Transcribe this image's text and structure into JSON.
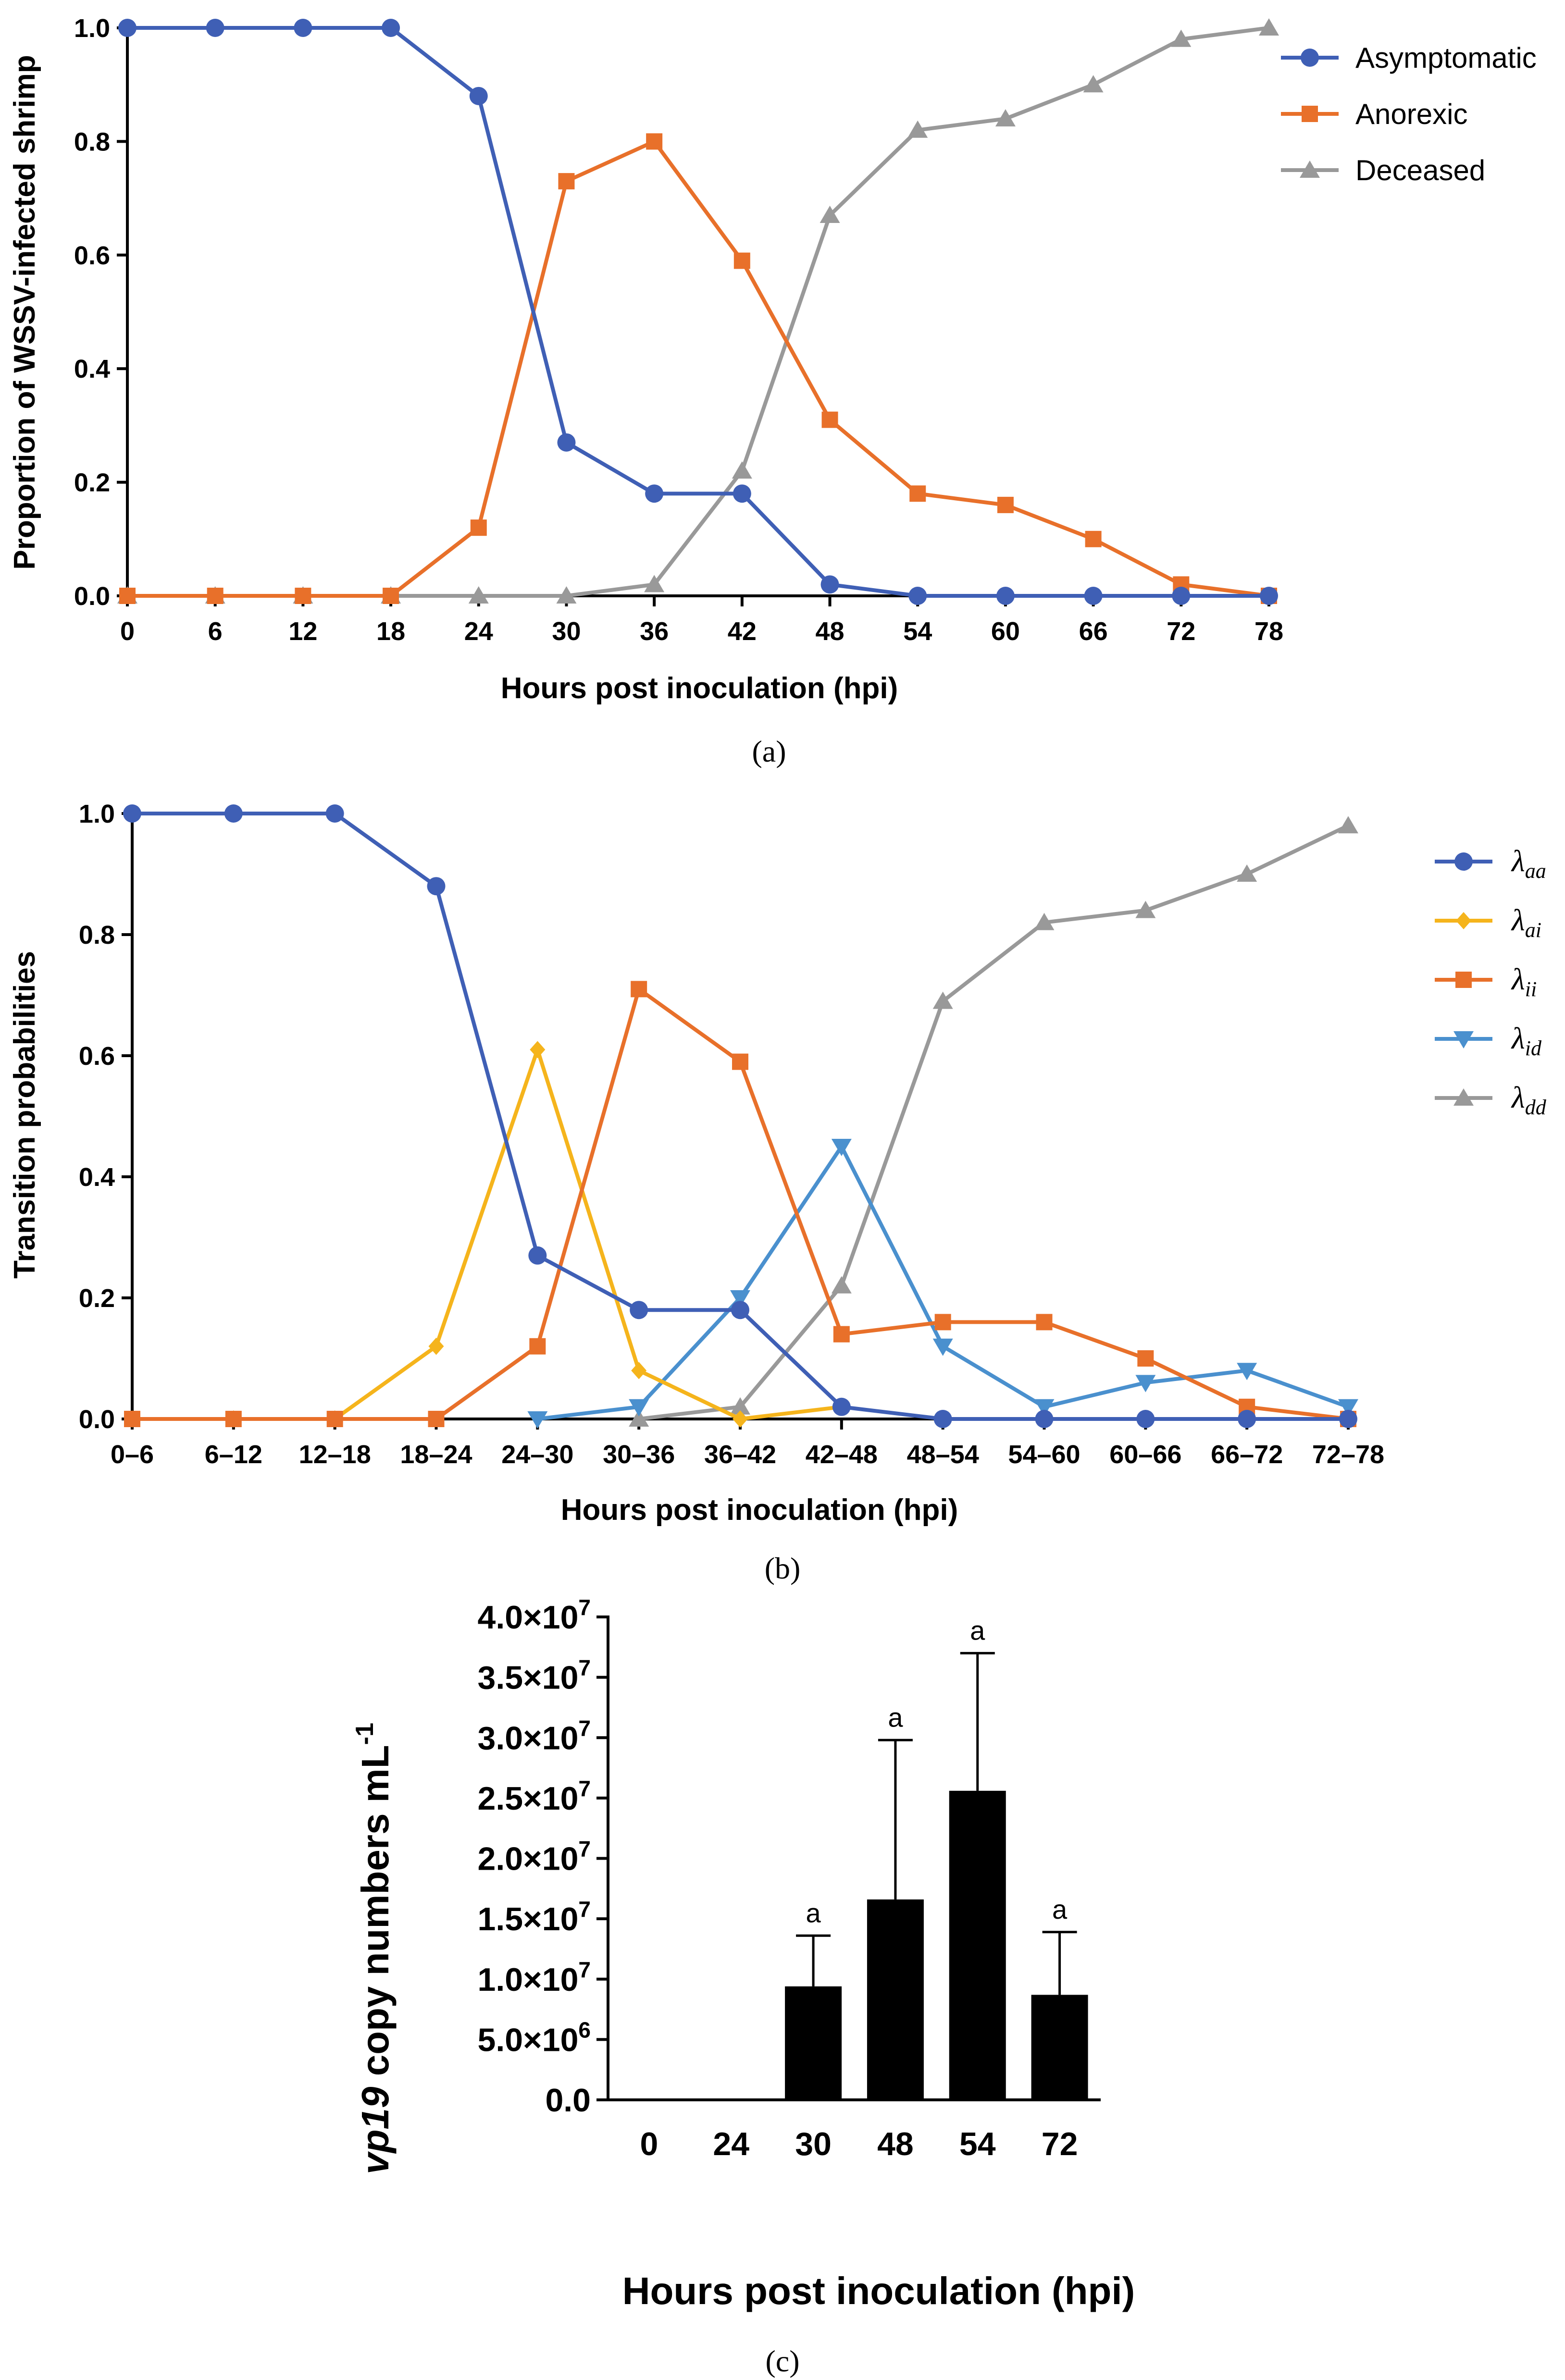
{
  "chart_data": [
    {
      "panel": "(a)",
      "type": "line",
      "xlabel": "Hours post inoculation (hpi)",
      "ylabel": "Proportion of WSSV-infected shrimp",
      "x": [
        0,
        6,
        12,
        18,
        24,
        30,
        36,
        42,
        48,
        54,
        60,
        66,
        72,
        78
      ],
      "xtick_labels": [
        "0",
        "6",
        "12",
        "18",
        "24",
        "30",
        "36",
        "42",
        "48",
        "54",
        "60",
        "66",
        "72",
        "78"
      ],
      "ylim": [
        0,
        1
      ],
      "yticks": [
        0,
        0.2,
        0.4,
        0.6,
        0.8,
        1
      ],
      "ytick_labels": [
        "0.0",
        "0.2",
        "0.4",
        "0.6",
        "0.8",
        "1.0"
      ],
      "legend_position": "top-right",
      "series": [
        {
          "name": "Asymptomatic",
          "color": "#3F5FB5",
          "marker": "circle",
          "values": [
            1,
            1,
            1,
            1,
            0.88,
            0.27,
            0.18,
            0.18,
            0.02,
            0,
            0,
            0,
            0,
            0
          ]
        },
        {
          "name": "Anorexic",
          "color": "#E8702A",
          "marker": "square",
          "values": [
            0,
            0,
            0,
            0,
            0.12,
            0.73,
            0.8,
            0.59,
            0.31,
            0.18,
            0.16,
            0.1,
            0.02,
            0
          ]
        },
        {
          "name": "Deceased",
          "color": "#999999",
          "marker": "triangle",
          "values": [
            0,
            0,
            0,
            0,
            0,
            0,
            0.02,
            0.22,
            0.67,
            0.82,
            0.84,
            0.9,
            0.98,
            1
          ]
        }
      ]
    },
    {
      "panel": "(b)",
      "type": "line",
      "xlabel": "Hours post inoculation (hpi)",
      "ylabel": "Transition probabilities",
      "categories": [
        "0–6",
        "6–12",
        "12–18",
        "18–24",
        "24–30",
        "30–36",
        "36–42",
        "42–48",
        "48–54",
        "54–60",
        "60–66",
        "66–72",
        "72–78"
      ],
      "ylim": [
        0,
        1
      ],
      "yticks": [
        0,
        0.2,
        0.4,
        0.6,
        0.8,
        1
      ],
      "ytick_labels": [
        "0.0",
        "0.2",
        "0.4",
        "0.6",
        "0.8",
        "1.0"
      ],
      "legend_position": "right",
      "series": [
        {
          "name": "λ",
          "sub": "aa",
          "color": "#3F5FB5",
          "marker": "circle",
          "values": [
            1,
            1,
            1,
            0.88,
            0.27,
            0.18,
            0.18,
            0.02,
            0,
            0,
            0,
            0,
            0
          ]
        },
        {
          "name": "λ",
          "sub": "ai",
          "color": "#F5B41C",
          "marker": "diamond",
          "values": [
            0,
            0,
            0,
            0.12,
            0.61,
            0.08,
            0,
            0.02,
            null,
            null,
            null,
            null,
            null
          ]
        },
        {
          "name": "λ",
          "sub": "ii",
          "color": "#E8702A",
          "marker": "square",
          "values": [
            0,
            0,
            0,
            0,
            0.12,
            0.71,
            0.59,
            0.14,
            0.16,
            0.16,
            0.1,
            0.02,
            0
          ]
        },
        {
          "name": "λ",
          "sub": "id",
          "color": "#4A90CE",
          "marker": "triangle-down",
          "values": [
            null,
            null,
            null,
            null,
            0,
            0.02,
            0.2,
            0.45,
            0.12,
            0.02,
            0.06,
            0.08,
            0.02
          ]
        },
        {
          "name": "λ",
          "sub": "dd",
          "color": "#999999",
          "marker": "triangle",
          "values": [
            null,
            null,
            null,
            null,
            null,
            0,
            0.02,
            0.22,
            0.69,
            0.82,
            0.84,
            0.9,
            0.98
          ]
        }
      ]
    },
    {
      "panel": "(c)",
      "type": "bar",
      "xlabel": "Hours post inoculation (hpi)",
      "ylabel_italic": "vp19",
      "ylabel_rest": " copy numbers mL",
      "ylabel_sup": "-1",
      "categories": [
        "0",
        "24",
        "30",
        "48",
        "54",
        "72"
      ],
      "values": [
        0,
        0,
        9400000,
        16600000,
        25600000,
        8700000
      ],
      "error_upper": [
        0,
        0,
        13600000,
        29800000,
        37000000,
        13900000
      ],
      "significance": [
        "",
        "",
        "a",
        "a",
        "a",
        "a"
      ],
      "bar_color": "#000000",
      "ylim": [
        0,
        40000000
      ],
      "yticks": [
        0,
        5000000,
        10000000,
        15000000,
        20000000,
        25000000,
        30000000,
        35000000,
        40000000
      ],
      "ytick_labels": [
        "0.0",
        "5.0×10",
        "1.0×10",
        "1.5×10",
        "2.0×10",
        "2.5×10",
        "3.0×10",
        "3.5×10",
        "4.0×10"
      ],
      "ytick_exponents": [
        "",
        "6",
        "7",
        "7",
        "7",
        "7",
        "7",
        "7",
        "7"
      ]
    }
  ]
}
